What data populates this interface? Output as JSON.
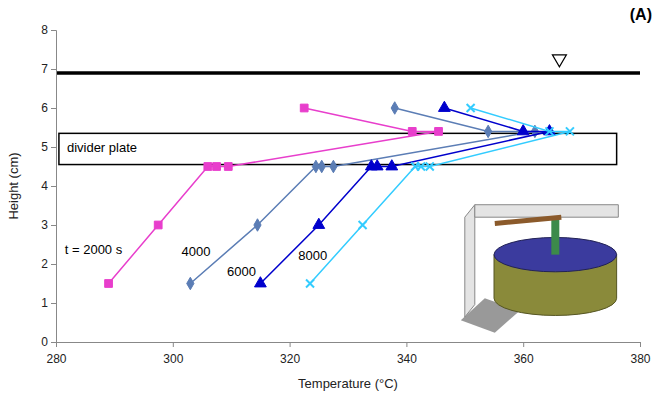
{
  "chart_data": {
    "type": "line",
    "panel_label": "(A)",
    "x_label": "Temperature (°C)",
    "y_label": "Height (cm)",
    "xlim": [
      280,
      380
    ],
    "ylim": [
      0,
      8
    ],
    "xticks": [
      280,
      300,
      320,
      340,
      360,
      380
    ],
    "yticks": [
      0,
      1,
      2,
      3,
      4,
      5,
      6,
      7,
      8
    ],
    "grid": false,
    "water_level": 6.9,
    "divider": {
      "label": "divider plate",
      "xlim": [
        280.5,
        376
      ],
      "ylim": [
        4.55,
        5.35
      ]
    },
    "series": [
      {
        "color": "#e83ecc",
        "marker": "square",
        "x": [
          289,
          297.5,
          306,
          307.5,
          309.5,
          345.5,
          341,
          322.5
        ],
        "values": [
          1.5,
          3,
          4.5,
          4.5,
          4.5,
          5.4,
          5.4,
          6
        ]
      },
      {
        "color": "#5b7db5",
        "marker": "diamond",
        "x": [
          303,
          314.5,
          324.5,
          325.5,
          327.5,
          362,
          354,
          338
        ],
        "values": [
          1.5,
          3,
          4.5,
          4.5,
          4.5,
          5.4,
          5.4,
          6
        ]
      },
      {
        "color": "#0000cc",
        "marker": "triangle",
        "x": [
          315,
          325,
          334,
          335,
          337.5,
          364.5,
          360,
          346.5
        ],
        "values": [
          1.5,
          3,
          4.5,
          4.5,
          4.5,
          5.4,
          5.4,
          6
        ]
      },
      {
        "color": "#33ccff",
        "marker": "x",
        "x": [
          323.5,
          332.5,
          341.5,
          342.5,
          344,
          368,
          364.5,
          351
        ],
        "values": [
          1.5,
          3,
          4.5,
          4.5,
          4.5,
          5.4,
          5.4,
          6
        ]
      }
    ],
    "annotations": [
      {
        "text": "t = 2000 s",
        "x": 281.5,
        "y": 2.25
      },
      {
        "text": "4000",
        "x": 301.5,
        "y": 2.2
      },
      {
        "text": "6000",
        "x": 309.3,
        "y": 1.7
      },
      {
        "text": "8000",
        "x": 321.5,
        "y": 2.1
      }
    ]
  }
}
